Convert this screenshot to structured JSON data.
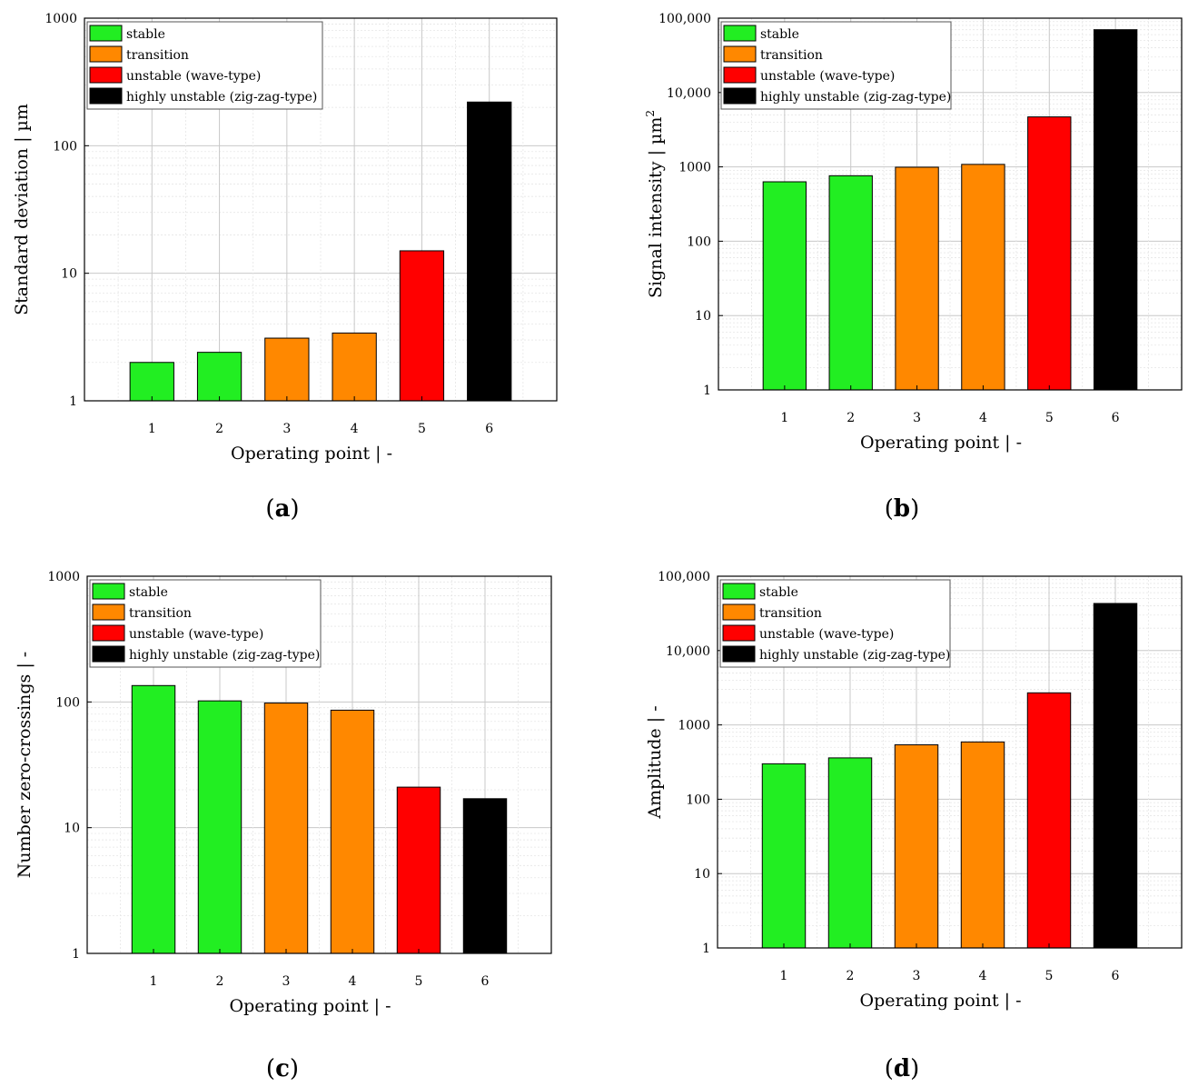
{
  "legend": [
    {
      "label": "stable",
      "color": "#22ee22"
    },
    {
      "label": "transition",
      "color": "#ff8800"
    },
    {
      "label": "unstable (wave-type)",
      "color": "#ff0000"
    },
    {
      "label": "highly unstable (zig-zag-type)",
      "color": "#000000"
    }
  ],
  "chart_data": [
    {
      "type": "bar",
      "panel": "a",
      "categories": [
        "1",
        "2",
        "3",
        "4",
        "5",
        "6"
      ],
      "values": [
        2.0,
        2.4,
        3.1,
        3.4,
        15,
        220
      ],
      "bar_classes": [
        0,
        0,
        1,
        1,
        2,
        3
      ],
      "xlabel": "Operating point | -",
      "ylabel": "Standard deviation | µm",
      "ylabel_sup": "",
      "yscale": "log",
      "ylim": [
        1,
        1000
      ],
      "yticks": [
        1,
        10,
        100,
        1000
      ],
      "ytick_labels": [
        "1",
        "10",
        "100",
        "1000"
      ],
      "grid": true,
      "legend_position": "top-left"
    },
    {
      "type": "bar",
      "panel": "b",
      "categories": [
        "1",
        "2",
        "3",
        "4",
        "5",
        "6"
      ],
      "values": [
        630,
        760,
        990,
        1080,
        4700,
        70000
      ],
      "bar_classes": [
        0,
        0,
        1,
        1,
        2,
        3
      ],
      "xlabel": "Operating point | -",
      "ylabel": "Signal intensity | µm",
      "ylabel_sup": "2",
      "yscale": "log",
      "ylim": [
        1,
        100000
      ],
      "yticks": [
        1,
        10,
        100,
        1000,
        10000,
        100000
      ],
      "ytick_labels": [
        "1",
        "10",
        "100",
        "1000",
        "10,000",
        "100,000"
      ],
      "grid": true,
      "legend_position": "top-left"
    },
    {
      "type": "bar",
      "panel": "c",
      "categories": [
        "1",
        "2",
        "3",
        "4",
        "5",
        "6"
      ],
      "values": [
        135,
        102,
        98,
        86,
        21,
        17
      ],
      "bar_classes": [
        0,
        0,
        1,
        1,
        2,
        3
      ],
      "xlabel": "Operating point | -",
      "ylabel": "Number zero-crossings | -",
      "ylabel_sup": "",
      "yscale": "log",
      "ylim": [
        1,
        1000
      ],
      "yticks": [
        1,
        10,
        100,
        1000
      ],
      "ytick_labels": [
        "1",
        "10",
        "100",
        "1000"
      ],
      "grid": true,
      "legend_position": "top-left"
    },
    {
      "type": "bar",
      "panel": "d",
      "categories": [
        "1",
        "2",
        "3",
        "4",
        "5",
        "6"
      ],
      "values": [
        300,
        360,
        540,
        590,
        2700,
        43000
      ],
      "bar_classes": [
        0,
        0,
        1,
        1,
        2,
        3
      ],
      "xlabel": "Operating point | -",
      "ylabel": "Amplitude | -",
      "ylabel_sup": "",
      "yscale": "log",
      "ylim": [
        1,
        100000
      ],
      "yticks": [
        1,
        10,
        100,
        1000,
        10000,
        100000
      ],
      "ytick_labels": [
        "1",
        "10",
        "100",
        "1000",
        "10,000",
        "100,000"
      ],
      "grid": true,
      "legend_position": "top-left"
    }
  ],
  "panel_labels": [
    {
      "letter": "a"
    },
    {
      "letter": "b"
    },
    {
      "letter": "c"
    },
    {
      "letter": "d"
    }
  ]
}
